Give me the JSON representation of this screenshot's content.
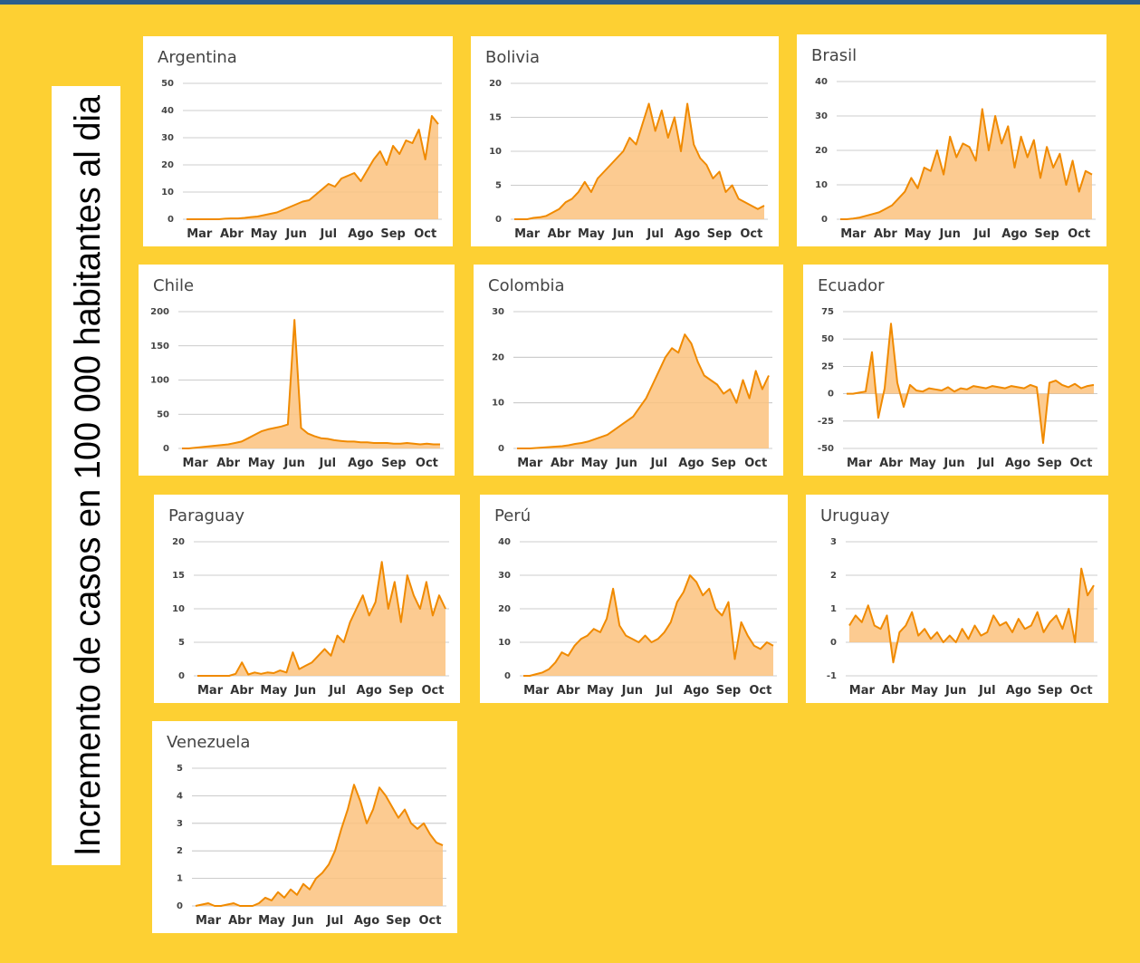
{
  "axis_label": "Incremento de casos en 100 000 habitantes al dia",
  "chart_data": [
    {
      "type": "area",
      "title": "Argentina",
      "color": "#f08a00",
      "ylim": [
        0,
        50
      ],
      "yticks": [
        0,
        10,
        20,
        30,
        40,
        50
      ],
      "categories": [
        null,
        null,
        "Mar",
        null,
        null,
        null,
        null,
        "Abr",
        null,
        null,
        null,
        null,
        "May",
        null,
        null,
        null,
        null,
        "Jun",
        null,
        null,
        null,
        null,
        "Jul",
        null,
        null,
        null,
        null,
        "Ago",
        null,
        null,
        null,
        null,
        "Sep",
        null,
        null,
        null,
        null,
        "Oct",
        null,
        null
      ],
      "values": [
        0,
        0,
        0,
        0,
        0,
        0,
        0.2,
        0.3,
        0.3,
        0.5,
        0.8,
        1,
        1.5,
        2,
        2.5,
        3.5,
        4.5,
        5.5,
        6.5,
        7,
        9,
        11,
        13,
        12,
        15,
        16,
        17,
        14,
        18,
        22,
        25,
        20,
        27,
        24,
        29,
        28,
        33,
        22,
        38,
        35
      ]
    },
    {
      "type": "area",
      "title": "Bolivia",
      "color": "#f08a00",
      "ylim": [
        0,
        20
      ],
      "yticks": [
        0,
        5,
        10,
        15,
        20
      ],
      "categories": [
        null,
        null,
        "Mar",
        null,
        null,
        null,
        null,
        "Abr",
        null,
        null,
        null,
        null,
        "May",
        null,
        null,
        null,
        null,
        "Jun",
        null,
        null,
        null,
        null,
        "Jul",
        null,
        null,
        null,
        null,
        "Ago",
        null,
        null,
        null,
        null,
        "Sep",
        null,
        null,
        null,
        null,
        "Oct",
        null,
        null
      ],
      "values": [
        0,
        0,
        0,
        0.2,
        0.3,
        0.5,
        1,
        1.5,
        2.5,
        3,
        4,
        5.5,
        4,
        6,
        7,
        8,
        9,
        10,
        12,
        11,
        14,
        17,
        13,
        16,
        12,
        15,
        10,
        17,
        11,
        9,
        8,
        6,
        7,
        4,
        5,
        3,
        2.5,
        2,
        1.5,
        2
      ]
    },
    {
      "type": "area",
      "title": "Brasil",
      "color": "#f08a00",
      "ylim": [
        0,
        40
      ],
      "yticks": [
        0,
        10,
        20,
        30,
        40
      ],
      "categories": [
        null,
        null,
        "Mar",
        null,
        null,
        null,
        null,
        "Abr",
        null,
        null,
        null,
        null,
        "May",
        null,
        null,
        null,
        null,
        "Jun",
        null,
        null,
        null,
        null,
        "Jul",
        null,
        null,
        null,
        null,
        "Ago",
        null,
        null,
        null,
        null,
        "Sep",
        null,
        null,
        null,
        null,
        "Oct",
        null,
        null
      ],
      "values": [
        0,
        0,
        0.2,
        0.5,
        1,
        1.5,
        2,
        3,
        4,
        6,
        8,
        12,
        9,
        15,
        14,
        20,
        13,
        24,
        18,
        22,
        21,
        17,
        32,
        20,
        30,
        22,
        27,
        15,
        24,
        18,
        23,
        12,
        21,
        15,
        19,
        10,
        17,
        8,
        14,
        13
      ]
    },
    {
      "type": "area",
      "title": "Chile",
      "color": "#f08a00",
      "ylim": [
        0,
        200
      ],
      "yticks": [
        0,
        50,
        100,
        150,
        200
      ],
      "categories": [
        null,
        null,
        "Mar",
        null,
        null,
        null,
        null,
        "Abr",
        null,
        null,
        null,
        null,
        "May",
        null,
        null,
        null,
        null,
        "Jun",
        null,
        null,
        null,
        null,
        "Jul",
        null,
        null,
        null,
        null,
        "Ago",
        null,
        null,
        null,
        null,
        "Sep",
        null,
        null,
        null,
        null,
        "Oct",
        null,
        null
      ],
      "values": [
        0,
        0,
        1,
        2,
        3,
        4,
        5,
        6,
        8,
        10,
        15,
        20,
        25,
        28,
        30,
        32,
        35,
        188,
        30,
        22,
        18,
        15,
        14,
        12,
        11,
        10,
        10,
        9,
        9,
        8,
        8,
        8,
        7,
        7,
        8,
        7,
        6,
        7,
        6,
        6
      ]
    },
    {
      "type": "area",
      "title": "Colombia",
      "color": "#f08a00",
      "ylim": [
        0,
        30
      ],
      "yticks": [
        0,
        10,
        20,
        30
      ],
      "categories": [
        null,
        null,
        "Mar",
        null,
        null,
        null,
        null,
        "Abr",
        null,
        null,
        null,
        null,
        "May",
        null,
        null,
        null,
        null,
        "Jun",
        null,
        null,
        null,
        null,
        "Jul",
        null,
        null,
        null,
        null,
        "Ago",
        null,
        null,
        null,
        null,
        "Sep",
        null,
        null,
        null,
        null,
        "Oct",
        null,
        null
      ],
      "values": [
        0,
        0,
        0,
        0.1,
        0.2,
        0.3,
        0.4,
        0.5,
        0.7,
        1,
        1.2,
        1.5,
        2,
        2.5,
        3,
        4,
        5,
        6,
        7,
        9,
        11,
        14,
        17,
        20,
        22,
        21,
        25,
        23,
        19,
        16,
        15,
        14,
        12,
        13,
        10,
        15,
        11,
        17,
        13,
        16
      ]
    },
    {
      "type": "area",
      "title": "Ecuador",
      "color": "#f08a00",
      "ylim": [
        -50,
        75
      ],
      "yticks": [
        -50,
        -25,
        0,
        25,
        50,
        75
      ],
      "categories": [
        null,
        null,
        "Mar",
        null,
        null,
        null,
        null,
        "Abr",
        null,
        null,
        null,
        null,
        "May",
        null,
        null,
        null,
        null,
        "Jun",
        null,
        null,
        null,
        null,
        "Jul",
        null,
        null,
        null,
        null,
        "Ago",
        null,
        null,
        null,
        null,
        "Sep",
        null,
        null,
        null,
        null,
        "Oct",
        null,
        null
      ],
      "values": [
        0,
        0,
        1,
        2,
        38,
        -22,
        5,
        64,
        10,
        -12,
        8,
        3,
        2,
        5,
        4,
        3,
        6,
        2,
        5,
        4,
        7,
        6,
        5,
        7,
        6,
        5,
        7,
        6,
        5,
        8,
        6,
        -45,
        10,
        12,
        8,
        6,
        9,
        5,
        7,
        8
      ]
    },
    {
      "type": "area",
      "title": "Paraguay",
      "color": "#f08a00",
      "ylim": [
        0,
        20
      ],
      "yticks": [
        0,
        5,
        10,
        15,
        20
      ],
      "categories": [
        null,
        null,
        "Mar",
        null,
        null,
        null,
        null,
        "Abr",
        null,
        null,
        null,
        null,
        "May",
        null,
        null,
        null,
        null,
        "Jun",
        null,
        null,
        null,
        null,
        "Jul",
        null,
        null,
        null,
        null,
        "Ago",
        null,
        null,
        null,
        null,
        "Sep",
        null,
        null,
        null,
        null,
        "Oct",
        null,
        null
      ],
      "values": [
        0,
        0,
        0,
        0,
        0,
        0,
        0.3,
        2,
        0.2,
        0.5,
        0.3,
        0.5,
        0.4,
        0.8,
        0.5,
        3.5,
        1,
        1.5,
        2,
        3,
        4,
        3,
        6,
        5,
        8,
        10,
        12,
        9,
        11,
        17,
        10,
        14,
        8,
        15,
        12,
        10,
        14,
        9,
        12,
        10
      ]
    },
    {
      "type": "area",
      "title": "Perú",
      "color": "#f08a00",
      "ylim": [
        0,
        40
      ],
      "yticks": [
        0,
        10,
        20,
        30,
        40
      ],
      "categories": [
        null,
        null,
        "Mar",
        null,
        null,
        null,
        null,
        "Abr",
        null,
        null,
        null,
        null,
        "May",
        null,
        null,
        null,
        null,
        "Jun",
        null,
        null,
        null,
        null,
        "Jul",
        null,
        null,
        null,
        null,
        "Ago",
        null,
        null,
        null,
        null,
        "Sep",
        null,
        null,
        null,
        null,
        "Oct",
        null,
        null
      ],
      "values": [
        0,
        0,
        0.5,
        1,
        2,
        4,
        7,
        6,
        9,
        11,
        12,
        14,
        13,
        17,
        26,
        15,
        12,
        11,
        10,
        12,
        10,
        11,
        13,
        16,
        22,
        25,
        30,
        28,
        24,
        26,
        20,
        18,
        22,
        5,
        16,
        12,
        9,
        8,
        10,
        9
      ]
    },
    {
      "type": "area",
      "title": "Uruguay",
      "color": "#f08a00",
      "ylim": [
        -1,
        3
      ],
      "yticks": [
        -1,
        0,
        1,
        2,
        3
      ],
      "categories": [
        null,
        null,
        "Mar",
        null,
        null,
        null,
        null,
        "Abr",
        null,
        null,
        null,
        null,
        "May",
        null,
        null,
        null,
        null,
        "Jun",
        null,
        null,
        null,
        null,
        "Jul",
        null,
        null,
        null,
        null,
        "Ago",
        null,
        null,
        null,
        null,
        "Sep",
        null,
        null,
        null,
        null,
        "Oct",
        null,
        null
      ],
      "values": [
        0.5,
        0.8,
        0.6,
        1.1,
        0.5,
        0.4,
        0.8,
        -0.6,
        0.3,
        0.5,
        0.9,
        0.2,
        0.4,
        0.1,
        0.3,
        0,
        0.2,
        0,
        0.4,
        0.1,
        0.5,
        0.2,
        0.3,
        0.8,
        0.5,
        0.6,
        0.3,
        0.7,
        0.4,
        0.5,
        0.9,
        0.3,
        0.6,
        0.8,
        0.4,
        1,
        0,
        2.2,
        1.4,
        1.7
      ]
    },
    {
      "type": "area",
      "title": "Venezuela",
      "color": "#f08a00",
      "ylim": [
        0,
        5
      ],
      "yticks": [
        0,
        1,
        2,
        3,
        4,
        5
      ],
      "categories": [
        null,
        null,
        "Mar",
        null,
        null,
        null,
        null,
        "Abr",
        null,
        null,
        null,
        null,
        "May",
        null,
        null,
        null,
        null,
        "Jun",
        null,
        null,
        null,
        null,
        "Jul",
        null,
        null,
        null,
        null,
        "Ago",
        null,
        null,
        null,
        null,
        "Sep",
        null,
        null,
        null,
        null,
        "Oct",
        null,
        null
      ],
      "values": [
        0,
        0.05,
        0.1,
        0,
        0,
        0.05,
        0.1,
        0,
        0,
        0,
        0.1,
        0.3,
        0.2,
        0.5,
        0.3,
        0.6,
        0.4,
        0.8,
        0.6,
        1,
        1.2,
        1.5,
        2,
        2.8,
        3.5,
        4.4,
        3.8,
        3,
        3.5,
        4.3,
        4,
        3.6,
        3.2,
        3.5,
        3,
        2.8,
        3,
        2.6,
        2.3,
        2.2
      ]
    }
  ]
}
